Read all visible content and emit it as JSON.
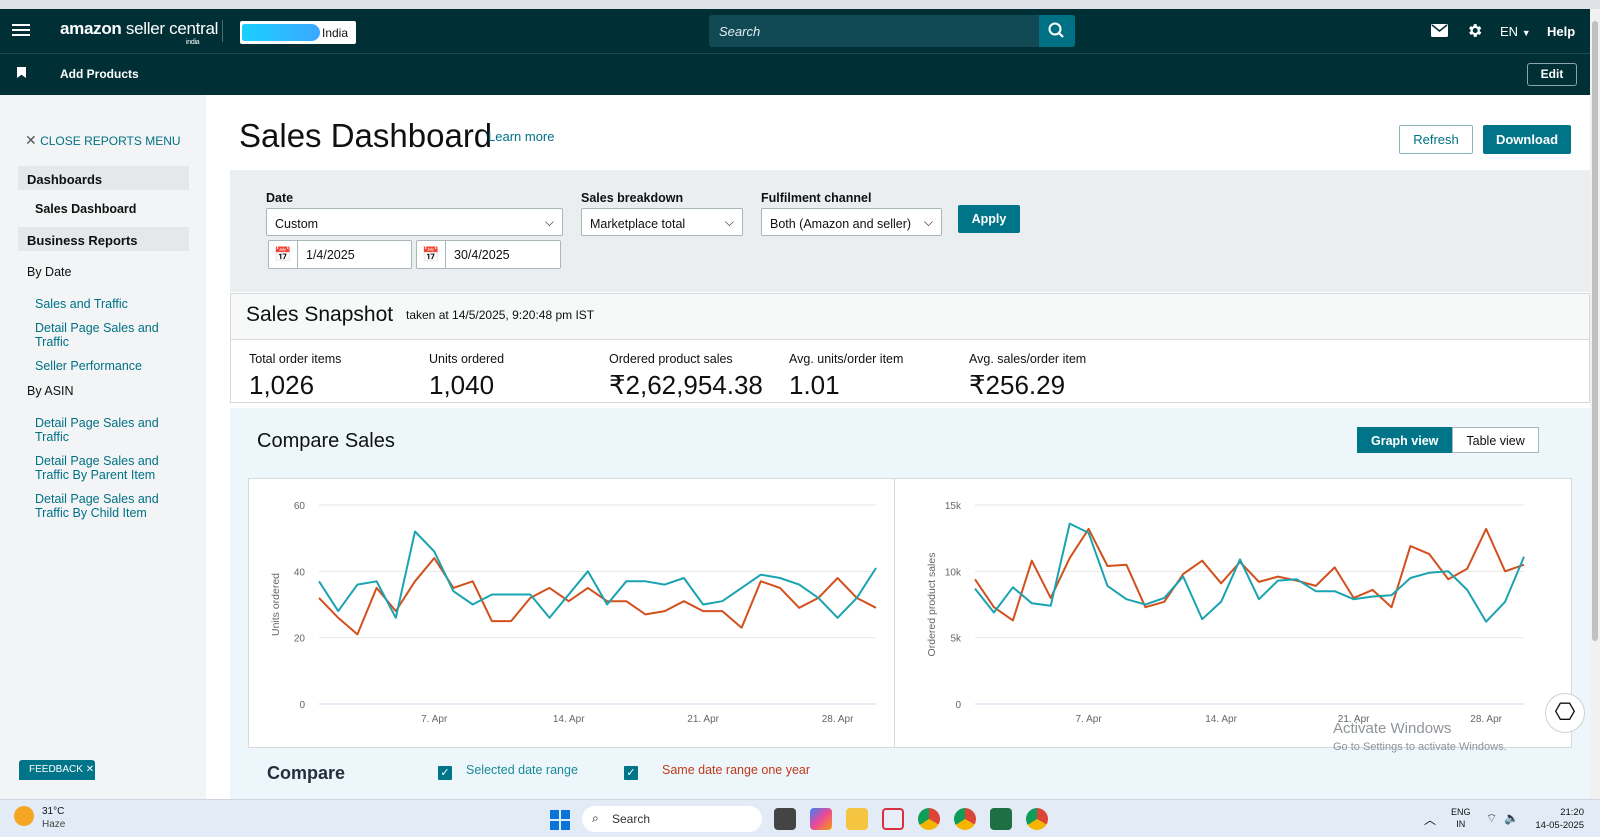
{
  "topbar": {
    "logo_main": "amazon",
    "logo_rest": " seller central",
    "logo_sub": "india",
    "account_region": "India",
    "search_placeholder": "Search",
    "language": "EN",
    "help": "Help"
  },
  "subbar": {
    "add_products": "Add Products",
    "edit": "Edit"
  },
  "sidebar": {
    "close_menu": "CLOSE REPORTS MENU",
    "dashboards_header": "Dashboards",
    "dashboards_item": "Sales Dashboard",
    "business_reports_header": "Business Reports",
    "by_date": "By Date",
    "by_date_links": [
      "Sales and Traffic",
      "Detail Page Sales and Traffic",
      "Seller Performance"
    ],
    "by_asin": "By ASIN",
    "by_asin_links": [
      "Detail Page Sales and Traffic",
      "Detail Page Sales and Traffic By Parent Item",
      "Detail Page Sales and Traffic By Child Item"
    ]
  },
  "page": {
    "title": "Sales Dashboard",
    "learn_more": "Learn more",
    "refresh": "Refresh",
    "download": "Download"
  },
  "filters": {
    "date_label": "Date",
    "date_value": "Custom",
    "start_date": "1/4/2025",
    "end_date": "30/4/2025",
    "breakdown_label": "Sales breakdown",
    "breakdown_value": "Marketplace total",
    "fulfilment_label": "Fulfilment channel",
    "fulfilment_value": "Both (Amazon and seller)",
    "apply": "Apply"
  },
  "snapshot": {
    "title": "Sales Snapshot",
    "taken": "taken at 14/5/2025, 9:20:48 pm IST",
    "metrics": [
      {
        "label": "Total order items",
        "value": "1,026"
      },
      {
        "label": "Units ordered",
        "value": "1,040"
      },
      {
        "label": "Ordered product sales",
        "value": "₹2,62,954.38"
      },
      {
        "label": "Avg. units/order item",
        "value": "1.01"
      },
      {
        "label": "Avg. sales/order item",
        "value": "₹256.29"
      }
    ]
  },
  "compare": {
    "title": "Compare Sales",
    "graph_view": "Graph view",
    "table_view": "Table view",
    "compare_label": "Compare",
    "selected_range": "Selected date range",
    "same_range_last_year": "Same date range one year"
  },
  "colors": {
    "selected": "#1aa3b0",
    "last_year": "#d2501e",
    "accent": "#00758a",
    "header": "#002f36"
  },
  "chart_data": [
    {
      "type": "line",
      "title": "",
      "ylabel": "Units ordered",
      "xlabel": "",
      "ylim": [
        0,
        60
      ],
      "yticks": [
        0,
        20,
        40,
        60
      ],
      "ytick_labels": [
        "0",
        "20",
        "40",
        "60"
      ],
      "x_ticks": [
        "7. Apr",
        "14. Apr",
        "21. Apr",
        "28. Apr"
      ],
      "x_tick_days": [
        7,
        14,
        21,
        28
      ],
      "x": [
        1,
        2,
        3,
        4,
        5,
        6,
        7,
        8,
        9,
        10,
        11,
        12,
        13,
        14,
        15,
        16,
        17,
        18,
        19,
        20,
        21,
        22,
        23,
        24,
        25,
        26,
        27,
        28,
        29,
        30
      ],
      "series": [
        {
          "name": "Selected date range",
          "color": "#1aa3b0",
          "values": [
            37,
            28,
            36,
            37,
            26,
            52,
            46,
            34,
            30,
            33,
            33,
            33,
            26,
            33,
            40,
            30,
            37,
            37,
            36,
            38,
            30,
            31,
            35,
            39,
            38,
            36,
            32,
            26,
            32,
            41
          ]
        },
        {
          "name": "Same date range one year",
          "color": "#d2501e",
          "values": [
            32,
            26,
            21,
            35,
            28,
            37,
            44,
            35,
            37,
            25,
            25,
            32,
            35,
            31,
            35,
            31,
            31,
            27,
            28,
            31,
            28,
            28,
            23,
            37,
            35,
            29,
            32,
            38,
            32,
            29
          ]
        }
      ]
    },
    {
      "type": "line",
      "title": "",
      "ylabel": "Ordered product sales",
      "xlabel": "",
      "ylim": [
        0,
        15000
      ],
      "yticks": [
        0,
        5000,
        10000,
        15000
      ],
      "ytick_labels": [
        "0",
        "5k",
        "10k",
        "15k"
      ],
      "x_ticks": [
        "7. Apr",
        "14. Apr",
        "21. Apr",
        "28. Apr"
      ],
      "x_tick_days": [
        7,
        14,
        21,
        28
      ],
      "x": [
        1,
        2,
        3,
        4,
        5,
        6,
        7,
        8,
        9,
        10,
        11,
        12,
        13,
        14,
        15,
        16,
        17,
        18,
        19,
        20,
        21,
        22,
        23,
        24,
        25,
        26,
        27,
        28,
        29,
        30
      ],
      "series": [
        {
          "name": "Selected date range",
          "color": "#1aa3b0",
          "values": [
            8700,
            6900,
            8800,
            7600,
            7400,
            13600,
            12900,
            8900,
            7900,
            7500,
            8000,
            9600,
            6400,
            7700,
            10900,
            7900,
            9300,
            9400,
            8500,
            8500,
            7900,
            8100,
            8200,
            9500,
            9900,
            10000,
            8600,
            6200,
            7700,
            11100
          ]
        },
        {
          "name": "Same date range one year",
          "color": "#d2501e",
          "values": [
            9400,
            7300,
            6300,
            10800,
            8000,
            11000,
            13200,
            10400,
            10500,
            7300,
            7700,
            9800,
            10800,
            9100,
            10700,
            9200,
            9600,
            9300,
            8900,
            10300,
            8000,
            8600,
            7300,
            11900,
            11300,
            9400,
            10200,
            13200,
            10000,
            10500
          ]
        }
      ]
    }
  ],
  "taskbar": {
    "weather_temp": "31°C",
    "weather_desc": "Haze",
    "search": "Search",
    "lang_top": "ENG",
    "lang_bottom": "IN",
    "time": "21:20",
    "date": "14-05-2025"
  },
  "watermark": {
    "title": "Activate Windows",
    "subtitle": "Go to Settings to activate Windows."
  },
  "feedback": "FEEDBACK"
}
